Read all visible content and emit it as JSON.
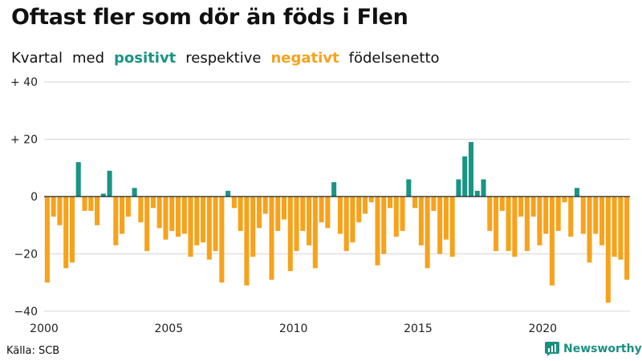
{
  "title": "Oftast fler som dör än föds i Flen",
  "subtitle": {
    "w1": "Kvartal",
    "w2": "med",
    "positive_word": "positivt",
    "w3": "respektive",
    "negative_word": "negativt",
    "w4": "födelsenetto"
  },
  "source": "Källa: SCB",
  "brand": "Newsworthy",
  "colors": {
    "positive": "#1a9485",
    "negative": "#f7a21b",
    "brand": "#1a8f80"
  },
  "chart_data": {
    "type": "bar",
    "x_start": 2000,
    "quarters_per_year": 4,
    "ylim": [
      -40,
      40
    ],
    "y_ticks": [
      {
        "value": 40,
        "label": "+ 40"
      },
      {
        "value": 20,
        "label": "+ 20"
      },
      {
        "value": 0,
        "label": "0"
      },
      {
        "value": -20,
        "label": "−20"
      },
      {
        "value": -40,
        "label": "−40"
      }
    ],
    "x_ticks": [
      {
        "value": 2000,
        "label": "2000"
      },
      {
        "value": 2005,
        "label": "2005"
      },
      {
        "value": 2010,
        "label": "2010"
      },
      {
        "value": 2015,
        "label": "2015"
      },
      {
        "value": 2020,
        "label": "2020"
      }
    ],
    "values": [
      -30,
      -7,
      -10,
      -25,
      -23,
      12,
      -5,
      -5,
      -10,
      1,
      9,
      -17,
      -13,
      -7,
      3,
      -9,
      -19,
      -4,
      -11,
      -15,
      -12,
      -14,
      -13,
      -21,
      -17,
      -16,
      -22,
      -19,
      -30,
      2,
      -4,
      -12,
      -31,
      -21,
      -11,
      -6,
      -29,
      -12,
      -8,
      -26,
      -19,
      -12,
      -17,
      -25,
      -9,
      -11,
      5,
      -13,
      -19,
      -16,
      -9,
      -6,
      -2,
      -24,
      -20,
      -4,
      -14,
      -12,
      6,
      -4,
      -17,
      -25,
      -5,
      -20,
      -15,
      -21,
      6,
      14,
      19,
      2,
      6,
      -12,
      -19,
      -5,
      -19,
      -21,
      -7,
      -19,
      -7,
      -17,
      -13,
      -31,
      -12,
      -2,
      -14,
      3,
      -13,
      -23,
      -13,
      -17,
      -37,
      -21,
      -22,
      -29
    ]
  }
}
